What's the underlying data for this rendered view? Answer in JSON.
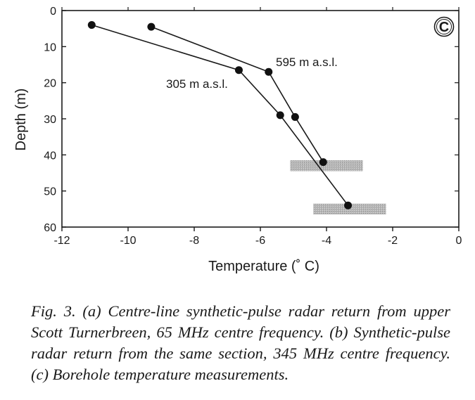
{
  "chart_data": {
    "type": "line",
    "panel_label": "C",
    "xlabel": "Temperature (˚ C)",
    "ylabel": "Depth (m)",
    "xlim": [
      -12,
      0
    ],
    "ylim": [
      60,
      0
    ],
    "x_ticks": [
      "-12",
      "-10",
      "-8",
      "-6",
      "-4",
      "-2",
      "0"
    ],
    "y_ticks": [
      "0",
      "10",
      "20",
      "30",
      "40",
      "50",
      "60"
    ],
    "series": [
      {
        "name": "595 m a.s.l.",
        "points": [
          {
            "x": -9.3,
            "y": 4.5
          },
          {
            "x": -5.75,
            "y": 17
          },
          {
            "x": -4.95,
            "y": 29.5
          },
          {
            "x": -4.1,
            "y": 42
          }
        ]
      },
      {
        "name": "305 m a.s.l.",
        "points": [
          {
            "x": -11.1,
            "y": 4
          },
          {
            "x": -6.65,
            "y": 16.5
          },
          {
            "x": -5.4,
            "y": 29
          },
          {
            "x": -3.35,
            "y": 54
          }
        ]
      }
    ],
    "shaded_ranges": [
      {
        "x_from": -5.1,
        "x_to": -2.9,
        "y_from": 41.5,
        "y_to": 44.5
      },
      {
        "x_from": -4.4,
        "x_to": -2.2,
        "y_from": 53.5,
        "y_to": 56.5
      }
    ]
  },
  "caption": "Fig. 3. (a) Centre-line synthetic-pulse radar return from upper Scott Turnerbreen, 65 MHz centre frequency. (b) Synthetic-pulse radar return from the same section, 345 MHz centre frequency. (c) Borehole temperature measurements."
}
